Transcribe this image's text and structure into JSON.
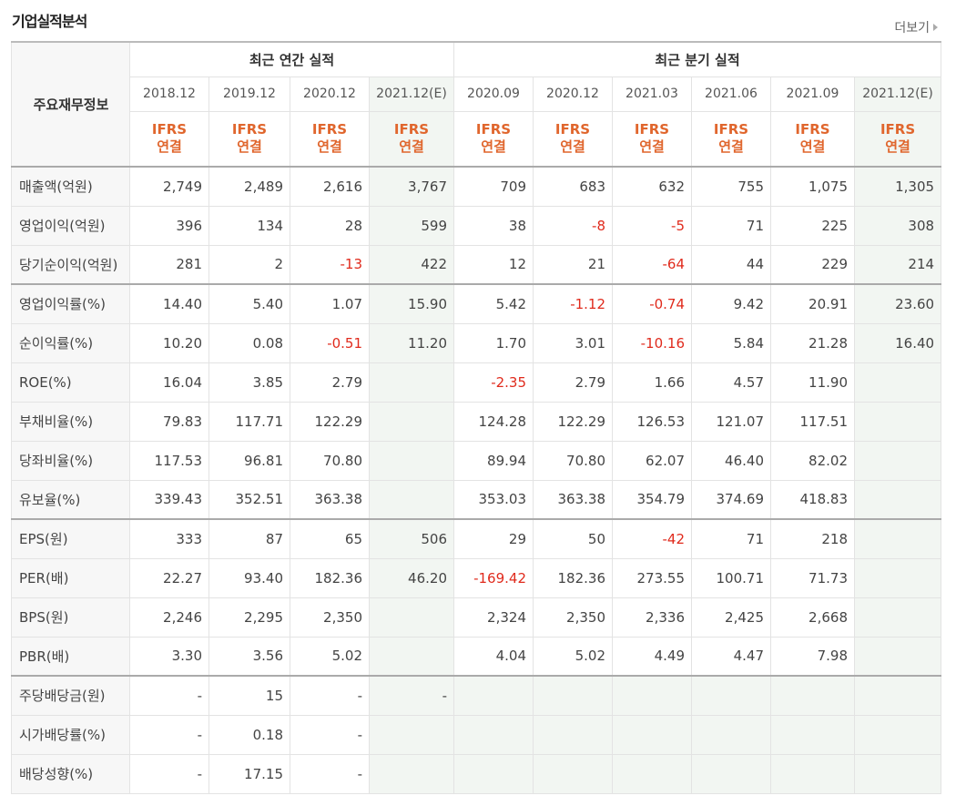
{
  "header": {
    "title": "기업실적분석",
    "more_label": "더보기"
  },
  "table": {
    "corner_label": "주요재무정보",
    "annual_group": "최근 연간 실적",
    "quarter_group": "최근 분기 실적",
    "periods": [
      "2018.12",
      "2019.12",
      "2020.12",
      "2021.12(E)",
      "2020.09",
      "2020.12",
      "2021.03",
      "2021.06",
      "2021.09",
      "2021.12(E)"
    ],
    "ifrs_line1": "IFRS",
    "ifrs_line2": "연결",
    "rows": [
      {
        "label": "매출액(억원)",
        "values": [
          "2,749",
          "2,489",
          "2,616",
          "3,767",
          "709",
          "683",
          "632",
          "755",
          "1,075",
          "1,305"
        ]
      },
      {
        "label": "영업이익(억원)",
        "values": [
          "396",
          "134",
          "28",
          "599",
          "38",
          "-8",
          "-5",
          "71",
          "225",
          "308"
        ]
      },
      {
        "label": "당기순이익(억원)",
        "values": [
          "281",
          "2",
          "-13",
          "422",
          "12",
          "21",
          "-64",
          "44",
          "229",
          "214"
        ]
      },
      {
        "label": "영업이익률(%)",
        "values": [
          "14.40",
          "5.40",
          "1.07",
          "15.90",
          "5.42",
          "-1.12",
          "-0.74",
          "9.42",
          "20.91",
          "23.60"
        ]
      },
      {
        "label": "순이익률(%)",
        "values": [
          "10.20",
          "0.08",
          "-0.51",
          "11.20",
          "1.70",
          "3.01",
          "-10.16",
          "5.84",
          "21.28",
          "16.40"
        ]
      },
      {
        "label": "ROE(%)",
        "values": [
          "16.04",
          "3.85",
          "2.79",
          "",
          "-2.35",
          "2.79",
          "1.66",
          "4.57",
          "11.90",
          ""
        ]
      },
      {
        "label": "부채비율(%)",
        "values": [
          "79.83",
          "117.71",
          "122.29",
          "",
          "124.28",
          "122.29",
          "126.53",
          "121.07",
          "117.51",
          ""
        ]
      },
      {
        "label": "당좌비율(%)",
        "values": [
          "117.53",
          "96.81",
          "70.80",
          "",
          "89.94",
          "70.80",
          "62.07",
          "46.40",
          "82.02",
          ""
        ]
      },
      {
        "label": "유보율(%)",
        "values": [
          "339.43",
          "352.51",
          "363.38",
          "",
          "353.03",
          "363.38",
          "354.79",
          "374.69",
          "418.83",
          ""
        ]
      },
      {
        "label": "EPS(원)",
        "values": [
          "333",
          "87",
          "65",
          "506",
          "29",
          "50",
          "-42",
          "71",
          "218",
          ""
        ]
      },
      {
        "label": "PER(배)",
        "values": [
          "22.27",
          "93.40",
          "182.36",
          "46.20",
          "-169.42",
          "182.36",
          "273.55",
          "100.71",
          "71.73",
          ""
        ]
      },
      {
        "label": "BPS(원)",
        "values": [
          "2,246",
          "2,295",
          "2,350",
          "",
          "2,324",
          "2,350",
          "2,336",
          "2,425",
          "2,668",
          ""
        ]
      },
      {
        "label": "PBR(배)",
        "values": [
          "3.30",
          "3.56",
          "5.02",
          "",
          "4.04",
          "5.02",
          "4.49",
          "4.47",
          "7.98",
          ""
        ]
      },
      {
        "label": "주당배당금(원)",
        "values": [
          "-",
          "15",
          "-",
          "-",
          "",
          "",
          "",
          "",
          "",
          ""
        ]
      },
      {
        "label": "시가배당률(%)",
        "values": [
          "-",
          "0.18",
          "-",
          "",
          "",
          "",
          "",
          "",
          "",
          ""
        ]
      },
      {
        "label": "배당성향(%)",
        "values": [
          "-",
          "17.15",
          "-",
          "",
          "",
          "",
          "",
          "",
          "",
          ""
        ]
      }
    ]
  },
  "colors": {
    "negative": "#e02a1c",
    "ifrs": "#e0662d",
    "estimate_bg": "#f2f6f2"
  }
}
